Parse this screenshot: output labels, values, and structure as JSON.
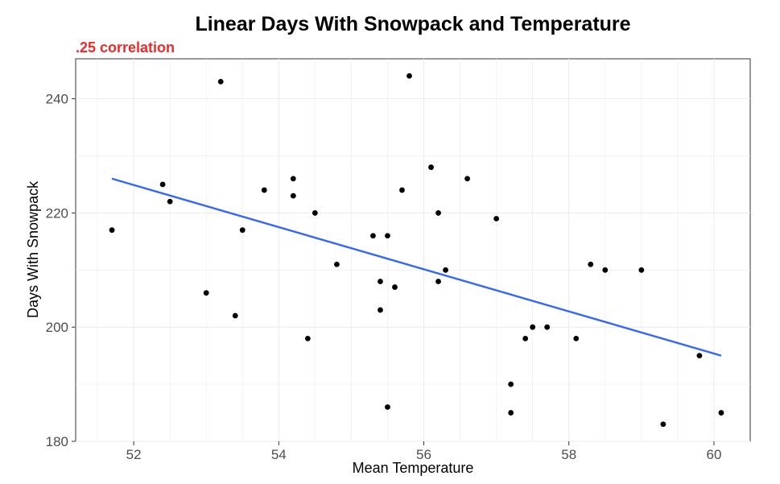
{
  "chart_data": {
    "type": "scatter",
    "title": "Linear Days With Snowpack and Temperature",
    "subtitle": ".25 correlation",
    "subtitle_color": "#ee2a2a",
    "xlabel": "Mean Temperature",
    "ylabel": "Days With Snowpack",
    "xlim": [
      51.2,
      60.5
    ],
    "ylim": [
      180,
      247
    ],
    "xticks": [
      52,
      54,
      56,
      58,
      60
    ],
    "yticks": [
      180,
      200,
      220,
      240
    ],
    "grid": true,
    "point_color": "#000000",
    "line_color": "#3366ff",
    "trendline": {
      "x": [
        51.7,
        60.1
      ],
      "y": [
        226,
        195
      ]
    },
    "points": [
      {
        "x": 51.7,
        "y": 217
      },
      {
        "x": 52.4,
        "y": 225
      },
      {
        "x": 52.5,
        "y": 222
      },
      {
        "x": 53.0,
        "y": 206
      },
      {
        "x": 53.2,
        "y": 243
      },
      {
        "x": 53.4,
        "y": 202
      },
      {
        "x": 53.5,
        "y": 217
      },
      {
        "x": 53.8,
        "y": 224
      },
      {
        "x": 54.2,
        "y": 226
      },
      {
        "x": 54.2,
        "y": 223
      },
      {
        "x": 54.4,
        "y": 198
      },
      {
        "x": 54.5,
        "y": 220
      },
      {
        "x": 54.8,
        "y": 211
      },
      {
        "x": 55.3,
        "y": 216
      },
      {
        "x": 55.4,
        "y": 208
      },
      {
        "x": 55.4,
        "y": 203
      },
      {
        "x": 55.5,
        "y": 216
      },
      {
        "x": 55.5,
        "y": 186
      },
      {
        "x": 55.6,
        "y": 207
      },
      {
        "x": 55.7,
        "y": 224
      },
      {
        "x": 55.8,
        "y": 244
      },
      {
        "x": 56.1,
        "y": 228
      },
      {
        "x": 56.2,
        "y": 220
      },
      {
        "x": 56.2,
        "y": 208
      },
      {
        "x": 56.3,
        "y": 210
      },
      {
        "x": 56.6,
        "y": 226
      },
      {
        "x": 57.0,
        "y": 219
      },
      {
        "x": 57.2,
        "y": 190
      },
      {
        "x": 57.2,
        "y": 185
      },
      {
        "x": 57.4,
        "y": 198
      },
      {
        "x": 57.5,
        "y": 200
      },
      {
        "x": 57.7,
        "y": 200
      },
      {
        "x": 58.1,
        "y": 198
      },
      {
        "x": 58.3,
        "y": 211
      },
      {
        "x": 58.5,
        "y": 210
      },
      {
        "x": 59.0,
        "y": 210
      },
      {
        "x": 59.3,
        "y": 183
      },
      {
        "x": 59.8,
        "y": 195
      },
      {
        "x": 60.1,
        "y": 185
      }
    ]
  }
}
